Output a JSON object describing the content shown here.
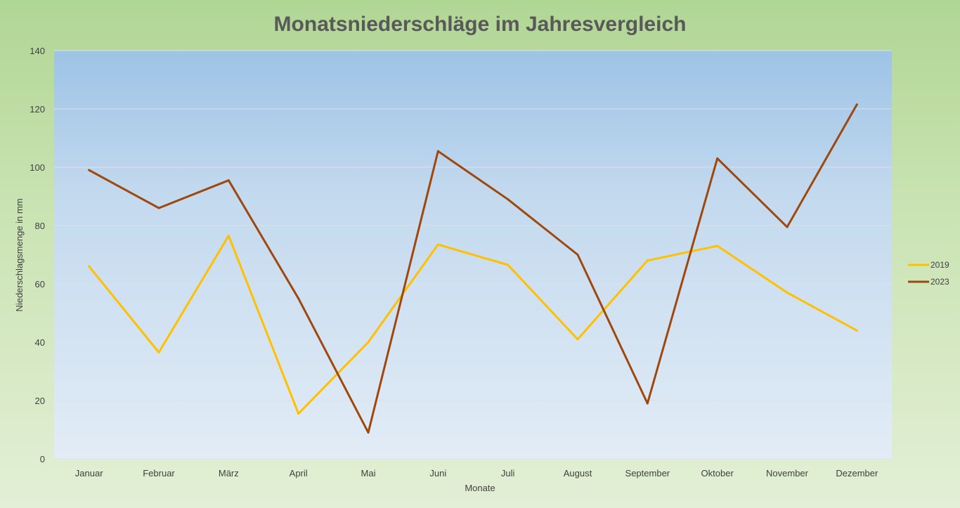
{
  "chart_data": {
    "type": "line",
    "title": "Monatsniederschläge im Jahresvergleich",
    "xlabel": "Monate",
    "ylabel": "Niederschlagsmenge in mm",
    "categories": [
      "Januar",
      "Februar",
      "März",
      "April",
      "Mai",
      "Juni",
      "Juli",
      "August",
      "September",
      "Oktober",
      "November",
      "Dezember"
    ],
    "ylim": [
      0,
      140
    ],
    "yticks": [
      0,
      20,
      40,
      60,
      80,
      100,
      120,
      140
    ],
    "grid": true,
    "legend_position": "right",
    "series": [
      {
        "name": "2019",
        "color": "#ffc000",
        "values": [
          66,
          36.5,
          76.5,
          15.5,
          40,
          73.5,
          66.5,
          41,
          68,
          73,
          57,
          44
        ]
      },
      {
        "name": "2023",
        "color": "#9e480e",
        "values": [
          99,
          86,
          95.5,
          55,
          9,
          105.5,
          89,
          70,
          19,
          103,
          79.5,
          121.5
        ]
      }
    ]
  }
}
